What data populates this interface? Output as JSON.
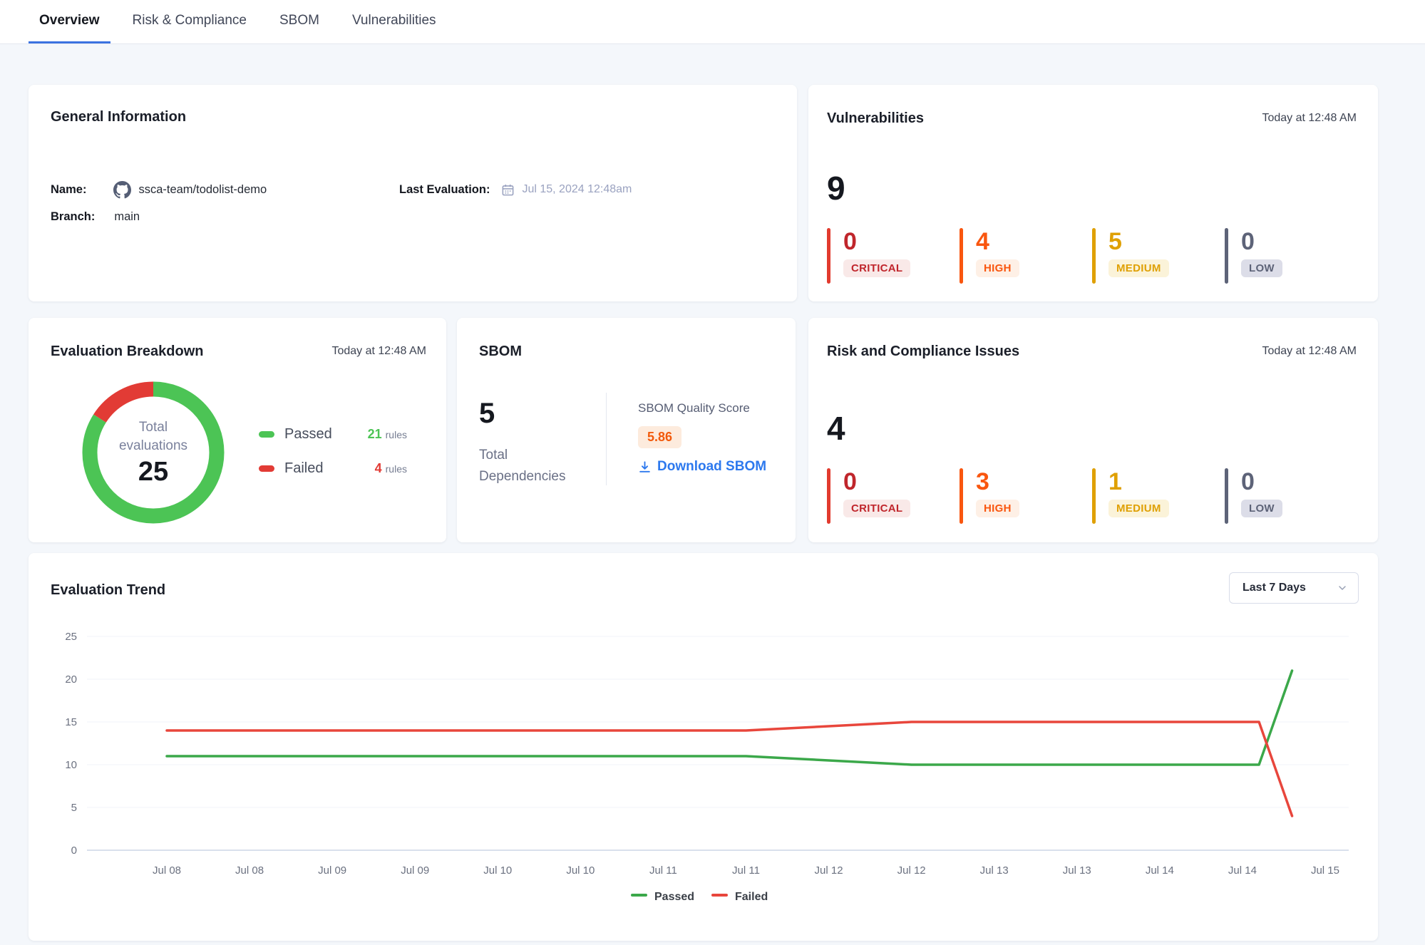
{
  "tabs": {
    "active_underline_color": "#3B72E0",
    "items": [
      {
        "label": "Overview",
        "active": true
      },
      {
        "label": "Risk & Compliance",
        "active": false
      },
      {
        "label": "SBOM",
        "active": false
      },
      {
        "label": "Vulnerabilities",
        "active": false
      }
    ]
  },
  "general_info": {
    "title": "General Information",
    "name_label": "Name:",
    "name_value": "ssca-team/todolist-demo",
    "name_icon": "github-icon",
    "branch_label": "Branch:",
    "branch_value": "main",
    "last_eval_label": "Last Evaluation:",
    "last_eval_icon": "calendar-icon",
    "last_eval_value": "Jul 15, 2024 12:48am"
  },
  "vulnerabilities": {
    "title": "Vulnerabilities",
    "timestamp": "Today at 12:48 AM",
    "total": "9",
    "severities": [
      {
        "label": "CRITICAL",
        "count": "0",
        "color": "#C0262C",
        "bar_color": "#E23B2E",
        "badge_bg": "#F9E9E8"
      },
      {
        "label": "HIGH",
        "count": "4",
        "color": "#F9560F",
        "bar_color": "#F9560F",
        "badge_bg": "#FEF0E6"
      },
      {
        "label": "MEDIUM",
        "count": "5",
        "color": "#DFA004",
        "bar_color": "#DFA004",
        "badge_bg": "#FBF3D9"
      },
      {
        "label": "LOW",
        "count": "0",
        "color": "#5D6378",
        "bar_color": "#5D6378",
        "badge_bg": "#DCDDE8"
      }
    ]
  },
  "evaluation_breakdown": {
    "title": "Evaluation Breakdown",
    "timestamp": "Today at 12:48 AM",
    "center_label_line1": "Total",
    "center_label_line2": "evaluations",
    "total": "25",
    "passed": {
      "label": "Passed",
      "value": "21",
      "unit": "rules",
      "color": "#4CC455"
    },
    "failed": {
      "label": "Failed",
      "value": "4",
      "unit": "rules",
      "color": "#E23B35"
    }
  },
  "sbom": {
    "title": "SBOM",
    "total": "5",
    "total_label_line1": "Total",
    "total_label_line2": "Dependencies",
    "score_label": "SBOM Quality Score",
    "score": "5.86",
    "score_color": "#F25A0C",
    "score_bg": "#FDEBDD",
    "download_label": "Download SBOM",
    "link_color": "#2D79EE"
  },
  "risk_compliance": {
    "title": "Risk and Compliance Issues",
    "timestamp": "Today at 12:48 AM",
    "total": "4",
    "severities": [
      {
        "label": "CRITICAL",
        "count": "0",
        "color": "#C0262C",
        "bar_color": "#E23B2E",
        "badge_bg": "#F9E9E8"
      },
      {
        "label": "HIGH",
        "count": "3",
        "color": "#F9560F",
        "bar_color": "#F9560F",
        "badge_bg": "#FEF0E6"
      },
      {
        "label": "MEDIUM",
        "count": "1",
        "color": "#DFA004",
        "bar_color": "#DFA004",
        "badge_bg": "#FBF3D9"
      },
      {
        "label": "LOW",
        "count": "0",
        "color": "#5D6378",
        "bar_color": "#5D6378",
        "badge_bg": "#DCDDE8"
      }
    ]
  },
  "trend": {
    "title": "Evaluation Trend",
    "range_selector": "Last 7 Days"
  },
  "chart_data": {
    "type": "line",
    "title": "Evaluation Trend",
    "x_labels": [
      "Jul 08",
      "Jul 08",
      "Jul 09",
      "Jul 09",
      "Jul 10",
      "Jul 10",
      "Jul 11",
      "Jul 11",
      "Jul 12",
      "Jul 12",
      "Jul 13",
      "Jul 13",
      "Jul 14",
      "Jul 14",
      "Jul 15"
    ],
    "y_ticks": [
      0,
      5,
      10,
      15,
      20,
      25
    ],
    "ylim": [
      0,
      25
    ],
    "grid": true,
    "legend_position": "bottom",
    "axis_color": "#6B7180",
    "grid_color": "#F1F3F8",
    "zero_line_color": "#D9E0EC",
    "series": [
      {
        "name": "Passed",
        "color": "#3BA84A",
        "points": [
          [
            0,
            11
          ],
          [
            7,
            11
          ],
          [
            9,
            10
          ],
          [
            13.2,
            10
          ],
          [
            13.6,
            21
          ]
        ]
      },
      {
        "name": "Failed",
        "color": "#E8463C",
        "points": [
          [
            0,
            14
          ],
          [
            7,
            14
          ],
          [
            9,
            15
          ],
          [
            13.2,
            15
          ],
          [
            13.6,
            4
          ]
        ]
      }
    ]
  }
}
